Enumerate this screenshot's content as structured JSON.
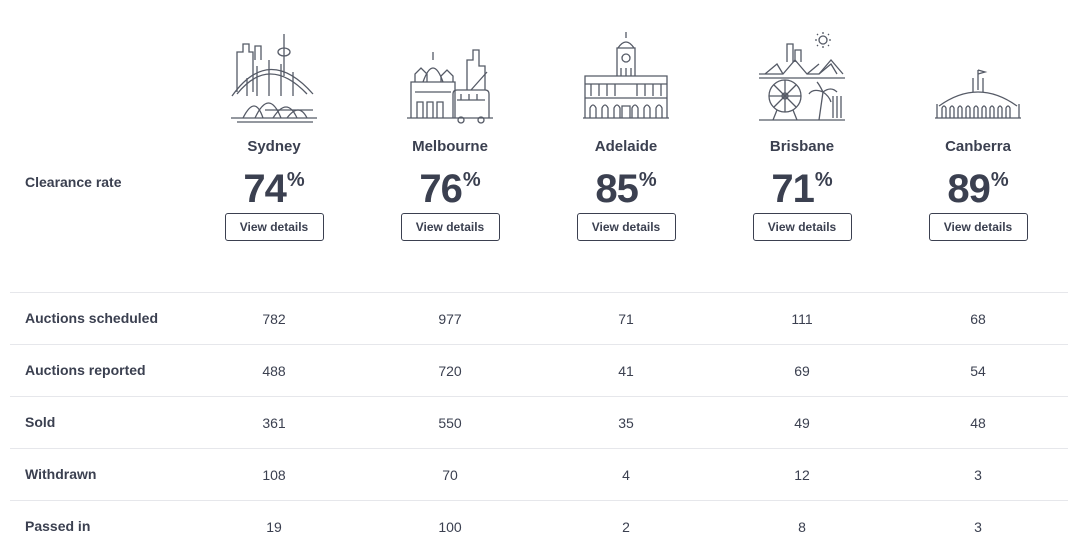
{
  "clearance_label": "Clearance rate",
  "pct_symbol": "%",
  "view_details_label": "View details",
  "cities": [
    {
      "name": "Sydney",
      "rate": "74",
      "skyline_icon": "sydney-skyline-icon"
    },
    {
      "name": "Melbourne",
      "rate": "76",
      "skyline_icon": "melbourne-skyline-icon"
    },
    {
      "name": "Adelaide",
      "rate": "85",
      "skyline_icon": "adelaide-skyline-icon"
    },
    {
      "name": "Brisbane",
      "rate": "71",
      "skyline_icon": "brisbane-skyline-icon"
    },
    {
      "name": "Canberra",
      "rate": "89",
      "skyline_icon": "canberra-skyline-icon"
    }
  ],
  "rows": [
    {
      "label": "Auctions scheduled",
      "values": [
        "782",
        "977",
        "71",
        "111",
        "68"
      ]
    },
    {
      "label": "Auctions reported",
      "values": [
        "488",
        "720",
        "41",
        "69",
        "54"
      ]
    },
    {
      "label": "Sold",
      "values": [
        "361",
        "550",
        "35",
        "49",
        "48"
      ]
    },
    {
      "label": "Withdrawn",
      "values": [
        "108",
        "70",
        "4",
        "12",
        "3"
      ]
    },
    {
      "label": "Passed in",
      "values": [
        "19",
        "100",
        "2",
        "8",
        "3"
      ]
    }
  ],
  "colors": {
    "text": "#3b4050",
    "divider": "#e6e7eb",
    "illustration": "#555a66"
  }
}
